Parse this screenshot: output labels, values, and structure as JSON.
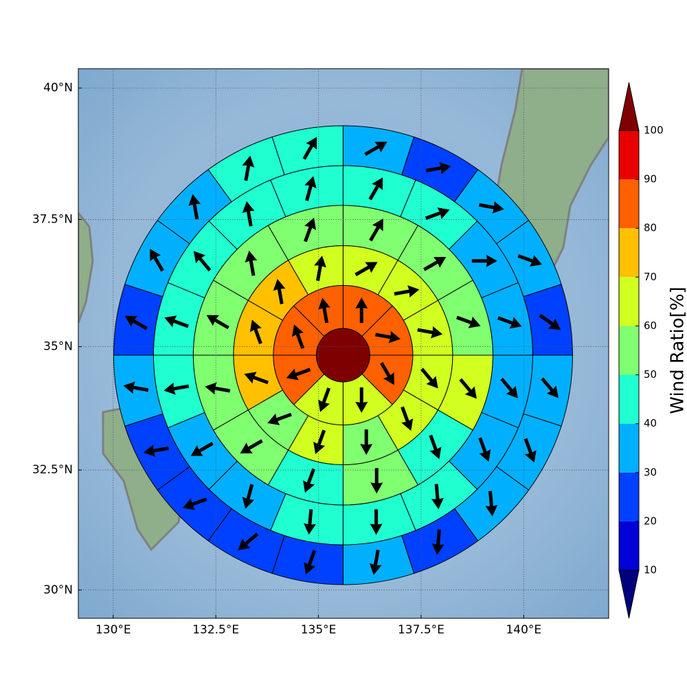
{
  "chart_data": {
    "type": "polar_grid",
    "xlim": [
      129.15,
      142.07
    ],
    "ylim": [
      29.4,
      40.36
    ],
    "xticks": [
      {
        "value": 130,
        "label": "130°E"
      },
      {
        "value": 132.5,
        "label": "132.5°E"
      },
      {
        "value": 135,
        "label": "135°E"
      },
      {
        "value": 137.5,
        "label": "137.5°E"
      },
      {
        "value": 140,
        "label": "140°E"
      }
    ],
    "yticks": [
      {
        "value": 30,
        "label": "30°N"
      },
      {
        "value": 32.5,
        "label": "32.5°N"
      },
      {
        "value": 35,
        "label": "35°N"
      },
      {
        "value": 37.5,
        "label": "37.5°N"
      },
      {
        "value": 40,
        "label": "40°N"
      }
    ],
    "grid": true,
    "center": [
      135.6,
      34.83
    ],
    "ring_radii": [
      0.65,
      1.7,
      2.67,
      3.65,
      4.62,
      5.59
    ],
    "center_value": 100,
    "rings": [
      {
        "values": [
          85,
          85,
          85,
          65,
          65,
          85,
          85,
          85
        ],
        "directions": [
          0,
          100,
          150,
          180,
          200,
          250,
          340,
          350
        ]
      },
      {
        "values": [
          65,
          65,
          65,
          65,
          65,
          55,
          65,
          55,
          75,
          75,
          75,
          65
        ],
        "directions": [
          60,
          80,
          100,
          140,
          160,
          180,
          200,
          250,
          290,
          340,
          350,
          10
        ]
      },
      {
        "values": [
          55,
          55,
          55,
          65,
          45,
          55,
          45,
          55,
          55,
          55,
          55,
          55
        ],
        "directions": [
          30,
          60,
          110,
          140,
          160,
          180,
          200,
          240,
          280,
          300,
          350,
          20
        ]
      },
      {
        "values": [
          45,
          45,
          35,
          35,
          35,
          35,
          45,
          45,
          45,
          35,
          35,
          45,
          45,
          45,
          45,
          45
        ],
        "directions": [
          30,
          70,
          90,
          110,
          140,
          160,
          175,
          180,
          185,
          195,
          240,
          260,
          290,
          320,
          350,
          15
        ]
      },
      {
        "values": [
          35,
          25,
          35,
          35,
          25,
          35,
          35,
          35,
          25,
          35,
          25,
          25,
          25,
          25,
          35,
          25,
          35,
          35,
          45,
          45
        ],
        "directions": [
          60,
          80,
          100,
          110,
          125,
          140,
          160,
          175,
          185,
          190,
          200,
          230,
          250,
          260,
          280,
          300,
          330,
          350,
          10,
          30
        ]
      }
    ],
    "colorbar": {
      "label": "Wind Ratio[%]",
      "levels": [
        10,
        20,
        30,
        40,
        50,
        60,
        70,
        80,
        90,
        100
      ],
      "colors": [
        "#0000d8",
        "#0040ff",
        "#00b0ff",
        "#20ffd0",
        "#80ff70",
        "#d0ff20",
        "#ffc000",
        "#ff6000",
        "#e80000"
      ],
      "under": "#00007f",
      "over": "#7f0000"
    }
  }
}
